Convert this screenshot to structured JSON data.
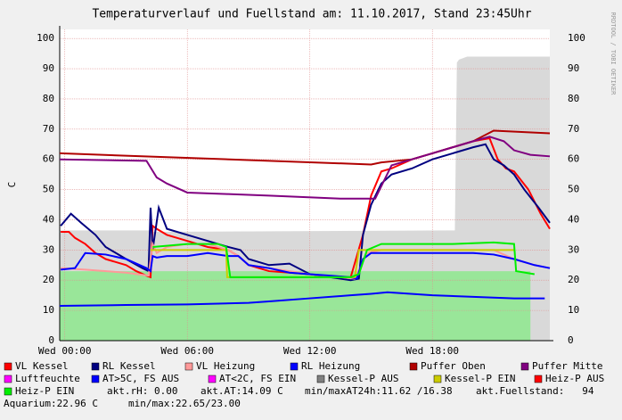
{
  "chart_data": {
    "type": "line",
    "title": "Temperaturverlauf und Fuellstand am: 11.10.2017, Stand 23:45Uhr",
    "y_label": "C",
    "side_text": "RRDTOOL / TOBI OETIKER",
    "xlim": [
      -0.25,
      23.75
    ],
    "xticks": [
      {
        "value": 0,
        "label": "Wed 00:00"
      },
      {
        "value": 6,
        "label": "Wed 06:00"
      },
      {
        "value": 12,
        "label": "Wed 12:00"
      },
      {
        "value": 18,
        "label": "Wed 18:00"
      }
    ],
    "ylim": [
      0,
      103
    ],
    "yticks": [
      0,
      10,
      20,
      30,
      40,
      50,
      60,
      70,
      80,
      90,
      100
    ],
    "grid": true,
    "areas": [
      {
        "color": "#d9d9d9",
        "x": [
          -0.25,
          4.1,
          4.2,
          19.1,
          19.2,
          19.3,
          19.7,
          23.75
        ],
        "values": [
          36.5,
          36.5,
          36,
          36.5,
          92,
          93,
          94,
          94
        ]
      },
      {
        "color": "#99e699",
        "x": [
          -0.25,
          22.8
        ],
        "values": [
          23,
          23
        ]
      }
    ],
    "series": [
      {
        "name": "VL Kessel",
        "color": "#ff0000",
        "x": [
          -0.2,
          0.2,
          0.5,
          1,
          1.5,
          2,
          3,
          3.5,
          4,
          4.2,
          4.3,
          4.5,
          5,
          6,
          7,
          8,
          8.5,
          9,
          10,
          12,
          13.5,
          14,
          14.6,
          15,
          15.5,
          16,
          17,
          18,
          19,
          20,
          20.8,
          21.2,
          21.6,
          22,
          22.7,
          23.3,
          23.75
        ],
        "values": [
          36,
          36,
          34,
          32,
          29,
          27,
          25,
          23,
          21.5,
          21,
          38,
          37,
          35,
          33,
          31,
          30,
          28,
          25,
          23,
          22,
          21,
          21,
          35,
          48,
          56,
          57,
          60,
          62,
          64,
          66,
          67,
          60,
          57,
          56,
          50,
          42,
          37
        ]
      },
      {
        "name": "RL Kessel",
        "color": "#000080",
        "x": [
          -0.2,
          0.3,
          0.8,
          1.5,
          2,
          3,
          3.8,
          4.1,
          4.2,
          4.3,
          4.6,
          5,
          6,
          7,
          8,
          8.6,
          9,
          10,
          11,
          12,
          13,
          14,
          14.4,
          14.6,
          15,
          15.5,
          16,
          17,
          18,
          19,
          20,
          20.6,
          21,
          21.5,
          22,
          22.5,
          23.2,
          23.75
        ],
        "values": [
          38,
          42,
          39,
          35,
          31,
          27,
          24,
          23,
          44,
          30,
          44,
          37,
          35,
          33,
          31,
          30,
          27,
          25,
          25.5,
          22,
          21,
          20,
          20.5,
          35,
          45,
          52,
          55,
          57,
          60,
          62,
          64,
          65,
          60,
          58,
          55,
          50,
          44,
          39
        ]
      },
      {
        "name": "VL Heizung",
        "color": "#ff9999",
        "x": [
          -0.2,
          1,
          3,
          4.1,
          4.3,
          4.5,
          5,
          6,
          7,
          8,
          8.5,
          9,
          10,
          11,
          12,
          13.5,
          14.2,
          14.8,
          15.5,
          19,
          21,
          22,
          23,
          23.75
        ],
        "values": [
          24,
          23.5,
          22.5,
          21.5,
          32,
          29,
          31,
          32,
          32,
          30,
          28,
          25,
          24,
          23,
          22,
          21,
          20.5,
          29,
          30,
          30,
          30,
          27,
          25,
          24
        ]
      },
      {
        "name": "RL Heizung",
        "color": "#0000ff",
        "x": [
          -0.2,
          0.5,
          1,
          2,
          3,
          4,
          4.2,
          4.3,
          4.5,
          5,
          6,
          7,
          8,
          8.5,
          9,
          10,
          11,
          12,
          13,
          14,
          14.3,
          14.6,
          15,
          20,
          21,
          22,
          23,
          23.75
        ],
        "values": [
          23.5,
          24,
          29,
          28.5,
          27,
          24,
          23,
          28,
          27.5,
          28,
          28,
          29,
          28,
          28,
          25,
          24,
          22.5,
          22,
          21.5,
          21,
          20.5,
          27,
          29,
          29,
          28.5,
          27,
          25,
          24
        ]
      },
      {
        "name": "Puffer Oben",
        "color": "#b00000",
        "x": [
          -0.25,
          15,
          15.5,
          17,
          18,
          19,
          20,
          21,
          23.75
        ],
        "values": [
          62,
          58.3,
          59,
          60,
          62,
          64,
          66,
          69.5,
          68.6
        ]
      },
      {
        "name": "Puffer Mitte",
        "color": "#800080",
        "x": [
          -0.25,
          4,
          4.5,
          5,
          6,
          8,
          10,
          13.5,
          15.2,
          16,
          18,
          19,
          20,
          20.8,
          21.5,
          22,
          22.8,
          23.75
        ],
        "values": [
          60,
          59.5,
          54,
          52,
          49,
          48.5,
          48,
          47,
          47,
          58,
          62,
          64,
          66,
          67.5,
          66,
          63,
          61.5,
          61
        ]
      },
      {
        "name": "Luftfeuchte",
        "color": "#ff00ff",
        "x": [],
        "values": []
      },
      {
        "name": "AT>5C, FS AUS",
        "color": "#0000ff",
        "x": [
          -0.25,
          3,
          6,
          9,
          10,
          12,
          14,
          15,
          15.8,
          18,
          20,
          22,
          23.5
        ],
        "values": [
          11.5,
          11.8,
          12,
          12.5,
          13,
          14,
          15,
          15.5,
          16,
          15,
          14.5,
          14,
          14
        ]
      },
      {
        "name": "AT<2C, FS EIN",
        "color": "#ff00ff",
        "x": [],
        "values": []
      },
      {
        "name": "Kessel-P AUS",
        "color": "#808080",
        "x": [],
        "values": []
      },
      {
        "name": "Kessel-P EIN",
        "color": "#cccc00",
        "x": [
          4.2,
          7.9,
          7.95,
          14.2,
          14.4,
          22
        ],
        "values": [
          30,
          30,
          21,
          21,
          30,
          30
        ]
      },
      {
        "name": "Heiz-P AUS",
        "color": "#ff0000",
        "x": [],
        "values": []
      },
      {
        "name": "Heiz-P EIN",
        "color": "#00ee00",
        "x": [
          4.3,
          6,
          7.5,
          7.9,
          8.1,
          14,
          14.4,
          14.8,
          15.5,
          19,
          21,
          22,
          22.1,
          23
        ],
        "values": [
          31,
          32,
          32,
          31,
          21,
          21,
          22,
          30,
          32,
          32,
          32.5,
          32,
          23,
          22
        ]
      }
    ],
    "notes": [
      "akt.rH: 0.00",
      "akt.AT:14.09 C",
      "min/maxAT24h:11.62 /16.38",
      "akt.Fuellstand:   94",
      "Aquarium:22.96 C",
      "min/max:22.65/23.00"
    ]
  }
}
